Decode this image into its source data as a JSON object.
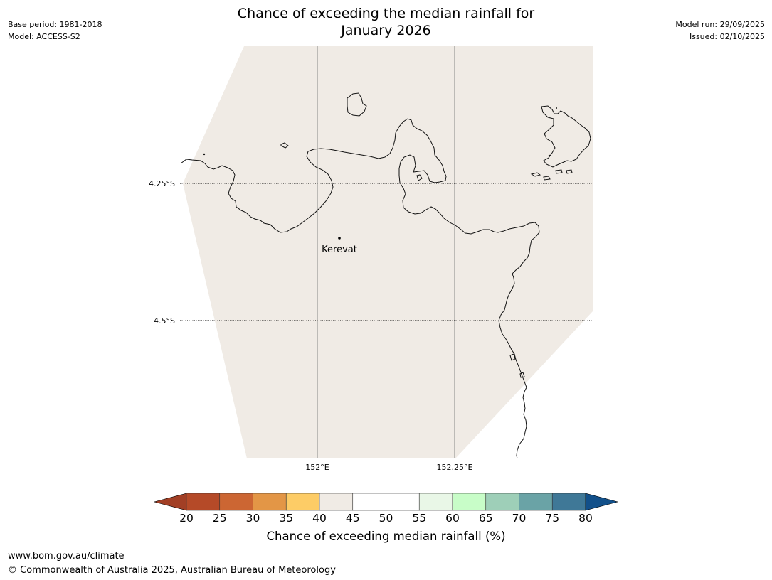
{
  "header": {
    "title_line1": "Chance of exceeding the median rainfall for",
    "title_line2": "January 2026",
    "base_period": "Base period: 1981-2018",
    "model": "Model: ACCESS-S2",
    "model_run": "Model run: 29/09/2025",
    "issued": "Issued: 02/10/2025"
  },
  "map": {
    "land_color": "#f0ebe5",
    "lat_labels": [
      "4.25°S",
      "4.5°S"
    ],
    "lon_labels": [
      "152°E",
      "152.25°E"
    ],
    "place": {
      "name": "Kerevat",
      "lon": 152.04,
      "lat": -4.35
    }
  },
  "colorbar": {
    "ticks": [
      "20",
      "25",
      "30",
      "35",
      "40",
      "45",
      "50",
      "55",
      "60",
      "65",
      "70",
      "75",
      "80"
    ],
    "colors": [
      "#a23f25",
      "#b54a28",
      "#cc6633",
      "#e39646",
      "#fdcc66",
      "#f0ebe5",
      "#ffffff",
      "#ffffff",
      "#e9f7e7",
      "#c8fdc8",
      "#9ecfb8",
      "#6aa3a6",
      "#3f7897",
      "#12508a"
    ],
    "label": "Chance of exceeding median rainfall (%)"
  },
  "footer": {
    "url": "www.bom.gov.au/climate",
    "copyright": "© Commonwealth of Australia 2025, Australian Bureau of Meteorology"
  }
}
